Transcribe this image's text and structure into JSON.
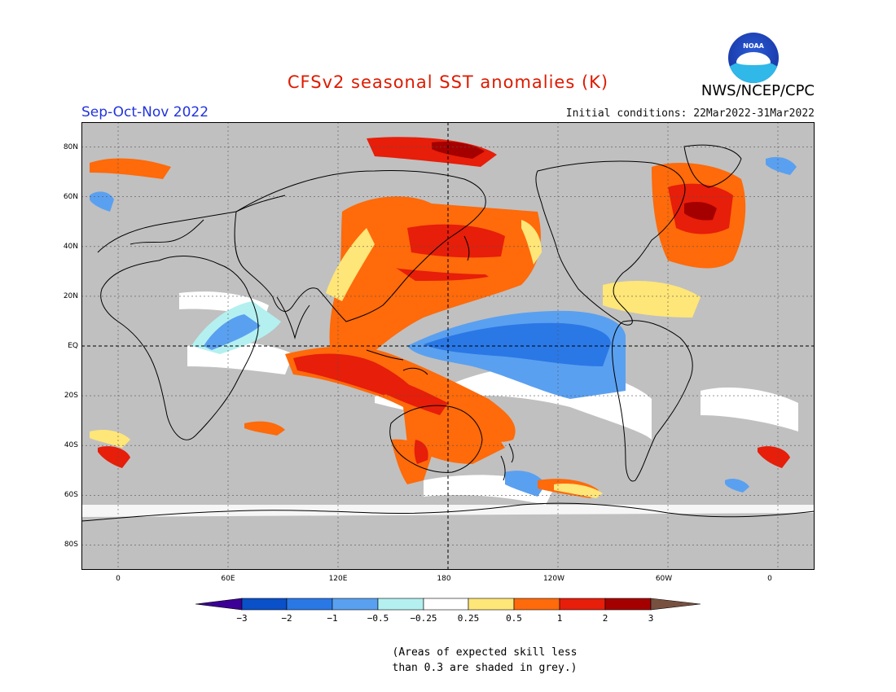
{
  "header": {
    "title": "CFSv2 seasonal SST anomalies (K)",
    "title_color": "#dd1a00",
    "season": "Sep-Oct-Nov 2022",
    "season_color": "#2233dd",
    "initial_conditions": "Initial conditions: 22Mar2022-31Mar2022",
    "organization": "NWS/NCEP/CPC",
    "logo_text": "NOAA",
    "logo_icon": "noaa-logo-icon"
  },
  "map": {
    "projection": "equirectangular",
    "lon_range": [
      -20,
      380
    ],
    "lat_range": [
      -90,
      90
    ],
    "lat_labels": [
      "80N",
      "60N",
      "40N",
      "20N",
      "EQ",
      "20S",
      "40S",
      "60S",
      "80S"
    ],
    "lon_labels": [
      "0",
      "60E",
      "120E",
      "180",
      "120W",
      "60W",
      "0"
    ],
    "land_color": "#c0c0c0",
    "reference_lines": [
      "equator",
      "dateline"
    ]
  },
  "colorbar": {
    "tick_labels": [
      "−3",
      "−2",
      "−1",
      "−0.5",
      "−0.25",
      "0.25",
      "0.5",
      "1",
      "2",
      "3"
    ],
    "colors": [
      "#3c0096",
      "#0a50c8",
      "#2a78e6",
      "#5aa0f0",
      "#b4f0f0",
      "#ffffff",
      "#ffe678",
      "#ff6a0a",
      "#e61e0a",
      "#a50000",
      "#785040"
    ]
  },
  "note": {
    "line1": "(Areas of expected skill less",
    "line2": "than 0.3 are shaded in grey.)"
  }
}
